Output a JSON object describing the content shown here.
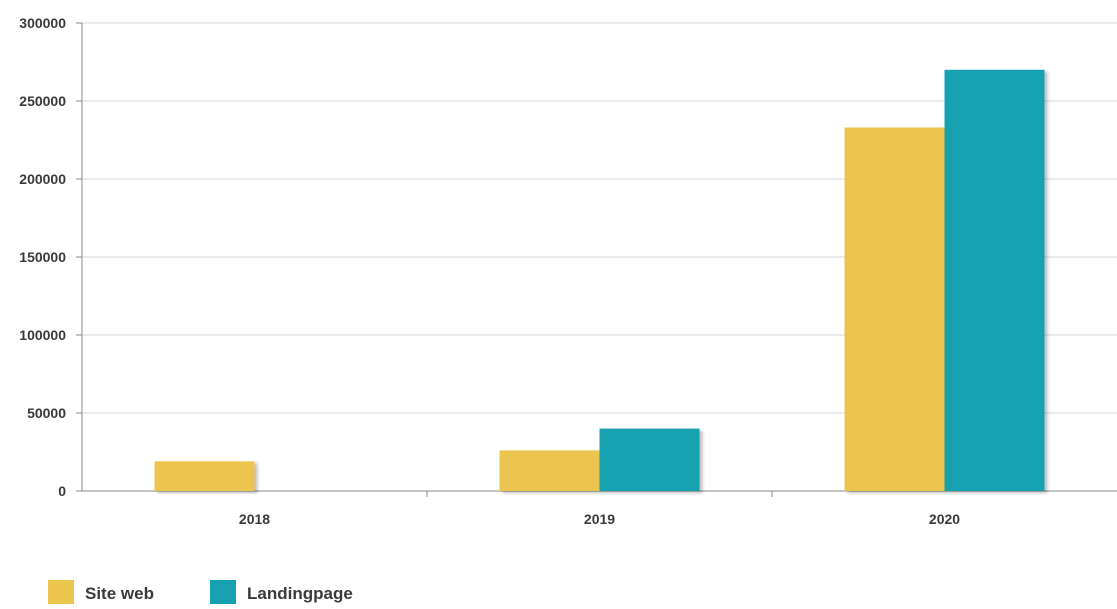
{
  "chart_data": {
    "type": "bar",
    "categories": [
      "2018",
      "2019",
      "2020"
    ],
    "series": [
      {
        "name": "Site web",
        "values": [
          19000,
          26000,
          233000
        ],
        "color": "#EBC54E"
      },
      {
        "name": "Landingpage",
        "values": [
          0,
          40000,
          270000
        ],
        "color": "#17A1B0"
      }
    ],
    "title": "",
    "xlabel": "",
    "ylabel": "",
    "ylim": [
      0,
      300000
    ],
    "yticks": [
      0,
      50000,
      100000,
      150000,
      200000,
      250000,
      300000
    ],
    "grid": true,
    "legend_position": "bottom-left"
  }
}
